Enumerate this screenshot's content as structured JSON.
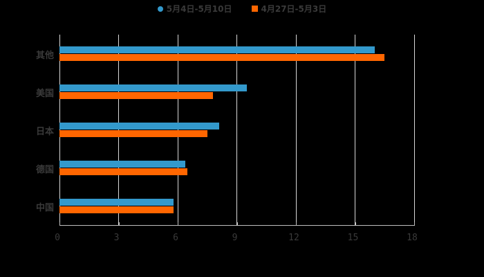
{
  "chart_data": {
    "type": "bar",
    "orientation": "horizontal",
    "title": "",
    "xlabel": "",
    "ylabel": "",
    "xlim": [
      0,
      18
    ],
    "xticks": [
      0,
      3,
      6,
      9,
      12,
      15,
      18
    ],
    "grid": true,
    "legend_position": "top",
    "categories": [
      "其他",
      "美国",
      "日本",
      "德国",
      "中国"
    ],
    "series": [
      {
        "name": "5月4日-5月10日",
        "color": "#3399cc",
        "values": [
          16.0,
          9.5,
          8.1,
          6.4,
          5.8
        ]
      },
      {
        "name": "4月27日-5月3日",
        "color": "#ff6600",
        "values": [
          16.5,
          7.8,
          7.5,
          6.5,
          5.8
        ]
      }
    ]
  },
  "legend": {
    "items": [
      {
        "label": "5月4日-5月10日",
        "color": "#3399cc",
        "marker": "circle"
      },
      {
        "label": "4月27日-5月3日",
        "color": "#ff6600",
        "marker": "square"
      }
    ]
  },
  "axis": {
    "tick_labels": [
      "0",
      "3",
      "6",
      "9",
      "12",
      "15",
      "18"
    ]
  },
  "categories": [
    "其他",
    "美国",
    "日本",
    "德国",
    "中国"
  ]
}
